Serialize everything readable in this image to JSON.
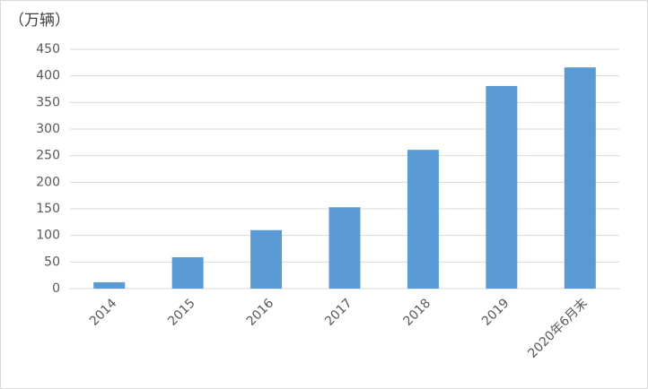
{
  "chart_data": {
    "type": "bar",
    "y_label": "（万辆）",
    "categories": [
      "2014",
      "2015",
      "2016",
      "2017",
      "2018",
      "2019",
      "2020年6月末"
    ],
    "values": [
      12,
      59,
      110,
      153,
      261,
      381,
      416
    ],
    "color": "#5b9bd5",
    "ylim": [
      0,
      450
    ],
    "yticks": [
      0,
      50,
      100,
      150,
      200,
      250,
      300,
      350,
      400,
      450
    ],
    "grid": true
  }
}
